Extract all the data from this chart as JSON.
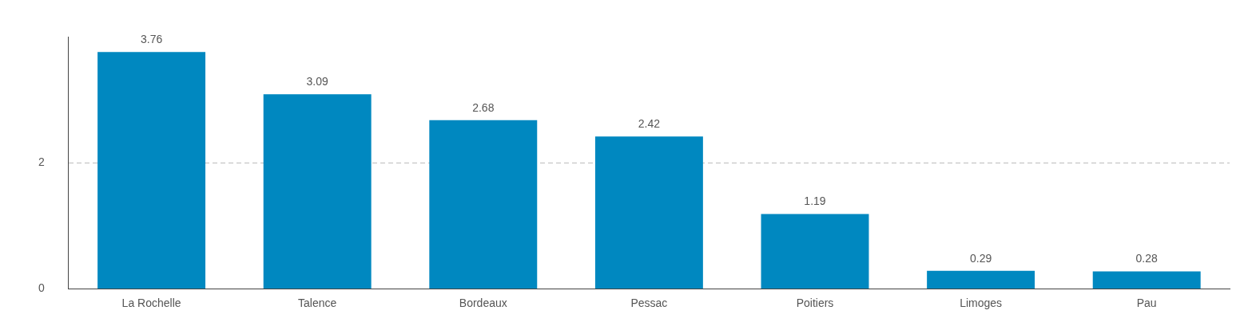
{
  "chart_data": {
    "type": "bar",
    "categories": [
      "La Rochelle",
      "Talence",
      "Bordeaux",
      "Pessac",
      "Poitiers",
      "Limoges",
      "Pau"
    ],
    "values": [
      3.76,
      3.09,
      2.68,
      2.42,
      1.19,
      0.29,
      0.28
    ],
    "color": "#0088c0",
    "ylim": [
      0,
      4
    ],
    "yticks": [
      0,
      2
    ],
    "grid": "y",
    "data_labels": true,
    "legend": false
  }
}
